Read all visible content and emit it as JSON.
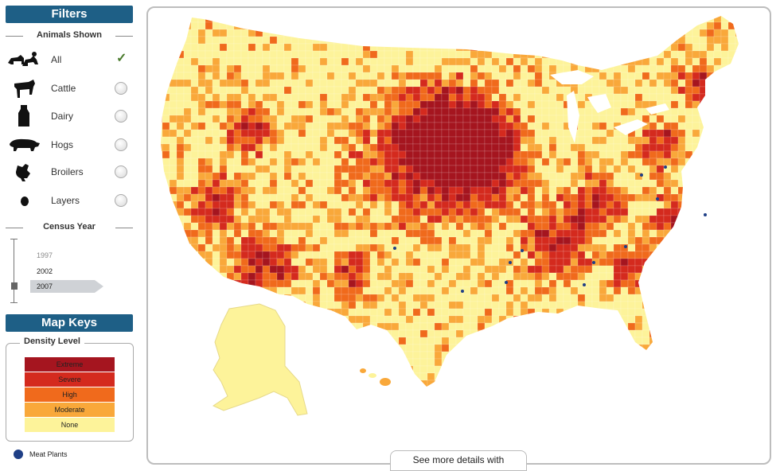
{
  "filters": {
    "title": "Filters",
    "animals_heading": "Animals Shown",
    "animals": [
      {
        "label": "All",
        "selected": true,
        "icon": "livestock-group-icon"
      },
      {
        "label": "Cattle",
        "selected": false,
        "icon": "cattle-icon"
      },
      {
        "label": "Dairy",
        "selected": false,
        "icon": "milk-bottle-icon"
      },
      {
        "label": "Hogs",
        "selected": false,
        "icon": "hog-icon"
      },
      {
        "label": "Broilers",
        "selected": false,
        "icon": "chicken-icon"
      },
      {
        "label": "Layers",
        "selected": false,
        "icon": "egg-icon"
      }
    ],
    "year_heading": "Census Year",
    "years": [
      "1997",
      "2002",
      "2007"
    ],
    "selected_year": "2007"
  },
  "map_keys": {
    "title": "Map Keys",
    "density_heading": "Density Level",
    "levels": [
      {
        "label": "Extreme",
        "color": "#a5151f"
      },
      {
        "label": "Severe",
        "color": "#d42a1e"
      },
      {
        "label": "High",
        "color": "#f06a1c"
      },
      {
        "label": "Moderate",
        "color": "#f9a83a"
      },
      {
        "label": "None",
        "color": "#fdf39a"
      }
    ],
    "meat_plants_label": "Meat Plants",
    "meat_plants_color": "#1f3f86"
  },
  "details_tab": "See more details with",
  "map": {
    "region": "United States",
    "alaska_color": "#fdf39a",
    "water_color": "#ffffff",
    "border_color": "#ffffff"
  }
}
